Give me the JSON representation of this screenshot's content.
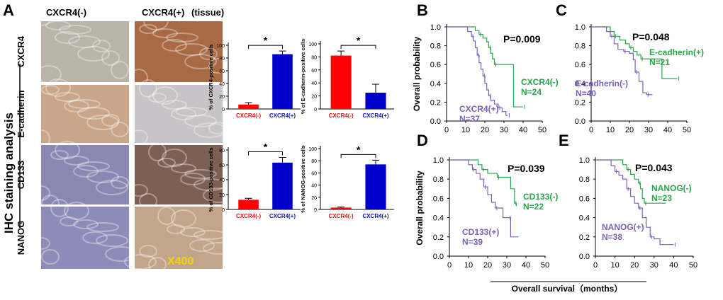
{
  "figure": {
    "panel_labels": {
      "A": "A",
      "B": "B",
      "C": "C",
      "D": "D",
      "E": "E"
    },
    "ihc": {
      "header_neg": "CXCR4(-)",
      "header_pos": "CXCR4(+)",
      "header_tissue": "(tissue)",
      "side_title": "IHC staining analysis",
      "rows": [
        "CXCR4",
        "E-cadherin",
        "CD133",
        "NANOG"
      ],
      "magnification": "X400",
      "tile_colors": [
        [
          "#b9b3a8",
          "#a86a45"
        ],
        [
          "#c9a689",
          "#c8c3c6"
        ],
        [
          "#8a87b2",
          "#7e5f54"
        ],
        [
          "#8d8bb8",
          "#c3a58b"
        ]
      ]
    },
    "bar_colors": {
      "neg": "#ff0000",
      "pos": "#0000cc",
      "neg_label": "#ee1111",
      "pos_label": "#1111cc"
    },
    "survival_xlabel": "Overall survival（months）",
    "survival_colors": {
      "neg": "#2ca44a",
      "pos": "#7e62b8"
    }
  },
  "chart_data": [
    {
      "id": "bar-cxcr4",
      "type": "bar",
      "ylabel": "% of CXCR4-positive cells",
      "categories": [
        "CXCR4(-)",
        "CXCR4(+)"
      ],
      "values": [
        7,
        86
      ],
      "errors": [
        3,
        5
      ],
      "ylim": [
        0,
        100
      ],
      "yticks": [
        0,
        20,
        40,
        60,
        80,
        100
      ],
      "significance": "*"
    },
    {
      "id": "bar-ecad",
      "type": "bar",
      "ylabel": "% of E-cadherin-positive cells",
      "categories": [
        "CXCR4(-)",
        "CXCR4(+)"
      ],
      "values": [
        82,
        25
      ],
      "errors": [
        7,
        13
      ],
      "ylim": [
        0,
        100
      ],
      "yticks": [
        0,
        20,
        40,
        60,
        80,
        100
      ],
      "significance": "*"
    },
    {
      "id": "bar-cd133",
      "type": "bar",
      "ylabel": "% of CD133-positive cells",
      "categories": [
        "CXCR4(-)",
        "CXCR4(+)"
      ],
      "values": [
        13,
        63
      ],
      "errors": [
        2,
        7
      ],
      "ylim": [
        0,
        80
      ],
      "yticks": [
        0,
        20,
        40,
        60,
        80
      ],
      "significance": "*"
    },
    {
      "id": "bar-nanog",
      "type": "bar",
      "ylabel": "% of NANOG-positive cells",
      "categories": [
        "CXCR4(-)",
        "CXCR4(+)"
      ],
      "values": [
        3,
        74
      ],
      "errors": [
        1,
        7
      ],
      "ylim": [
        0,
        100
      ],
      "yticks": [
        0,
        20,
        40,
        60,
        80,
        100
      ],
      "significance": "*"
    },
    {
      "id": "km-B",
      "type": "line",
      "ylabel": "Overall probability",
      "xlim": [
        0,
        50
      ],
      "ylim": [
        0,
        1
      ],
      "xticks": [
        0,
        10,
        20,
        30,
        40,
        50
      ],
      "yticks": [
        0.0,
        0.2,
        0.4,
        0.6,
        0.8,
        1.0
      ],
      "pvalue": "P=0.009",
      "series": [
        {
          "name": "CXCR4(-)",
          "n": "N=24",
          "group": "neg",
          "label_lines": [
            "CXCR4(-)",
            "N=24"
          ],
          "steps": [
            [
              0,
              1
            ],
            [
              13,
              1
            ],
            [
              15,
              0.96
            ],
            [
              17,
              0.92
            ],
            [
              19,
              0.88
            ],
            [
              21,
              0.84
            ],
            [
              22,
              0.78
            ],
            [
              23,
              0.72
            ],
            [
              24,
              0.66
            ],
            [
              25,
              0.6
            ],
            [
              34,
              0.6
            ],
            [
              35,
              0.15
            ],
            [
              40,
              0.15
            ]
          ]
        },
        {
          "name": "CXCR4(+)",
          "n": "N=37",
          "group": "pos",
          "label_lines": [
            "CXCR4(+)",
            "N=37"
          ],
          "steps": [
            [
              0,
              1
            ],
            [
              10,
              1
            ],
            [
              11,
              0.95
            ],
            [
              13,
              0.9
            ],
            [
              14,
              0.85
            ],
            [
              15,
              0.78
            ],
            [
              16,
              0.7
            ],
            [
              17,
              0.62
            ],
            [
              18,
              0.55
            ],
            [
              19,
              0.48
            ],
            [
              20,
              0.4
            ],
            [
              21,
              0.33
            ],
            [
              22,
              0.27
            ],
            [
              23,
              0.22
            ],
            [
              25,
              0.18
            ],
            [
              27,
              0.14
            ],
            [
              29,
              0.1
            ],
            [
              31,
              0.06
            ],
            [
              32,
              0.06
            ]
          ]
        }
      ]
    },
    {
      "id": "km-C",
      "type": "line",
      "ylabel": "",
      "xlim": [
        0,
        50
      ],
      "ylim": [
        0,
        1
      ],
      "xticks": [
        0,
        10,
        20,
        30,
        40,
        50
      ],
      "yticks": [
        0.0,
        0.2,
        0.4,
        0.6,
        0.8,
        1.0
      ],
      "pvalue": "P=0.048",
      "series": [
        {
          "name": "E-cadherin(+)",
          "n": "N=21",
          "group": "neg",
          "label_lines": [
            "E-cadherin(+)",
            "N=21"
          ],
          "steps": [
            [
              0,
              1
            ],
            [
              8,
              1
            ],
            [
              10,
              0.95
            ],
            [
              12,
              0.9
            ],
            [
              15,
              0.86
            ],
            [
              18,
              0.82
            ],
            [
              20,
              0.78
            ],
            [
              22,
              0.74
            ],
            [
              24,
              0.7
            ],
            [
              26,
              0.66
            ],
            [
              36,
              0.66
            ],
            [
              37,
              0.45
            ],
            [
              45,
              0.45
            ]
          ]
        },
        {
          "name": "E-cadherin(-)",
          "n": "N=40",
          "group": "pos",
          "label_lines": [
            "E-cadherin(-)",
            "N=40"
          ],
          "steps": [
            [
              0,
              1
            ],
            [
              7,
              1
            ],
            [
              8,
              0.95
            ],
            [
              10,
              0.9
            ],
            [
              12,
              0.82
            ],
            [
              14,
              0.76
            ],
            [
              17,
              0.74
            ],
            [
              20,
              0.72
            ],
            [
              22,
              0.65
            ],
            [
              23,
              0.52
            ],
            [
              25,
              0.42
            ],
            [
              27,
              0.3
            ],
            [
              29,
              0.28
            ],
            [
              32,
              0.28
            ]
          ]
        }
      ]
    },
    {
      "id": "km-D",
      "type": "line",
      "ylabel": "Overall probability",
      "xlim": [
        0,
        50
      ],
      "ylim": [
        0,
        1
      ],
      "xticks": [
        0,
        10,
        20,
        30,
        40,
        50
      ],
      "yticks": [
        0.0,
        0.2,
        0.4,
        0.6,
        0.8,
        1.0
      ],
      "pvalue": "P=0.039",
      "series": [
        {
          "name": "CD133(-)",
          "n": "N=22",
          "group": "neg",
          "label_lines": [
            "CD133(-)",
            "N=22"
          ],
          "steps": [
            [
              0,
              1
            ],
            [
              14,
              1
            ],
            [
              15,
              0.95
            ],
            [
              17,
              0.9
            ],
            [
              20,
              0.86
            ],
            [
              24,
              0.86
            ],
            [
              25,
              0.82
            ],
            [
              30,
              0.82
            ],
            [
              32,
              0.7
            ],
            [
              34,
              0.55
            ],
            [
              35,
              0.52
            ]
          ]
        },
        {
          "name": "CD133(+)",
          "n": "N=39",
          "group": "pos",
          "label_lines": [
            "CD133(+)",
            "N=39"
          ],
          "steps": [
            [
              0,
              1
            ],
            [
              8,
              1
            ],
            [
              10,
              0.95
            ],
            [
              12,
              0.9
            ],
            [
              14,
              0.86
            ],
            [
              16,
              0.8
            ],
            [
              18,
              0.72
            ],
            [
              20,
              0.64
            ],
            [
              22,
              0.56
            ],
            [
              24,
              0.5
            ],
            [
              26,
              0.5
            ],
            [
              28,
              0.4
            ],
            [
              31,
              0.4
            ],
            [
              32,
              0.2
            ],
            [
              36,
              0.2
            ]
          ]
        }
      ]
    },
    {
      "id": "km-E",
      "type": "line",
      "ylabel": "",
      "xlim": [
        0,
        50
      ],
      "ylim": [
        0,
        1
      ],
      "xticks": [
        0,
        10,
        20,
        30,
        40,
        50
      ],
      "yticks": [
        0.0,
        0.2,
        0.4,
        0.6,
        0.8,
        1.0
      ],
      "pvalue": "P=0.043",
      "series": [
        {
          "name": "NANOG(-)",
          "n": "N=23",
          "group": "neg",
          "label_lines": [
            "NANOG(-)",
            "N=23"
          ],
          "steps": [
            [
              0,
              1
            ],
            [
              12,
              1
            ],
            [
              14,
              0.95
            ],
            [
              16,
              0.9
            ],
            [
              18,
              0.85
            ],
            [
              20,
              0.8
            ],
            [
              22,
              0.76
            ],
            [
              23,
              0.7
            ],
            [
              24,
              0.6
            ],
            [
              25,
              0.55
            ],
            [
              36,
              0.55
            ]
          ]
        },
        {
          "name": "NANOG(+)",
          "n": "N=38",
          "group": "pos",
          "label_lines": [
            "NANOG(+)",
            "N=38"
          ],
          "steps": [
            [
              0,
              1
            ],
            [
              6,
              1
            ],
            [
              8,
              0.94
            ],
            [
              10,
              0.88
            ],
            [
              12,
              0.84
            ],
            [
              14,
              0.8
            ],
            [
              16,
              0.7
            ],
            [
              18,
              0.62
            ],
            [
              20,
              0.55
            ],
            [
              22,
              0.5
            ],
            [
              24,
              0.4
            ],
            [
              26,
              0.3
            ],
            [
              28,
              0.2
            ],
            [
              30,
              0.18
            ],
            [
              33,
              0.12
            ],
            [
              40,
              0.12
            ]
          ]
        }
      ]
    }
  ]
}
